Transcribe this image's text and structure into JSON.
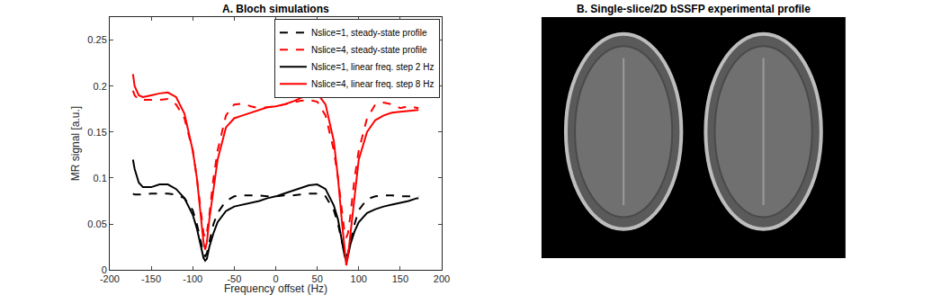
{
  "chart_data": [
    {
      "type": "line",
      "title": "A. Bloch simulations",
      "x_label": "Frequency offset (Hz)",
      "y_label": "MR signal [a.u.]",
      "x": [
        -172,
        -170,
        -165,
        -160,
        -150,
        -140,
        -130,
        -120,
        -110,
        -100,
        -95,
        -90,
        -87,
        -85,
        -83,
        -80,
        -75,
        -70,
        -60,
        -50,
        -40,
        -30,
        -20,
        -10,
        0,
        10,
        20,
        30,
        40,
        50,
        60,
        70,
        75,
        80,
        83,
        85,
        87,
        90,
        95,
        100,
        110,
        120,
        130,
        140,
        150,
        160,
        170,
        172
      ],
      "series": [
        {
          "name": "Nslice=1, steady-state profile",
          "color": "#000000",
          "line_style": "dash",
          "values": [
            0.083,
            0.082,
            0.082,
            0.082,
            0.083,
            0.083,
            0.083,
            0.082,
            0.078,
            0.065,
            0.05,
            0.03,
            0.018,
            0.015,
            0.018,
            0.03,
            0.05,
            0.062,
            0.075,
            0.08,
            0.081,
            0.081,
            0.081,
            0.08,
            0.08,
            0.081,
            0.081,
            0.082,
            0.083,
            0.083,
            0.08,
            0.065,
            0.05,
            0.03,
            0.018,
            0.015,
            0.018,
            0.03,
            0.05,
            0.065,
            0.077,
            0.08,
            0.081,
            0.081,
            0.08,
            0.08,
            0.08,
            0.08
          ]
        },
        {
          "name": "Nslice=4, steady-state profile",
          "color": "#ff0000",
          "line_style": "dash",
          "values": [
            0.195,
            0.19,
            0.185,
            0.185,
            0.185,
            0.185,
            0.186,
            0.18,
            0.165,
            0.13,
            0.1,
            0.06,
            0.04,
            0.035,
            0.04,
            0.06,
            0.1,
            0.13,
            0.168,
            0.18,
            0.181,
            0.178,
            0.176,
            0.177,
            0.178,
            0.18,
            0.182,
            0.184,
            0.185,
            0.183,
            0.168,
            0.13,
            0.1,
            0.06,
            0.04,
            0.035,
            0.04,
            0.06,
            0.1,
            0.13,
            0.165,
            0.18,
            0.182,
            0.18,
            0.176,
            0.178,
            0.176,
            0.176
          ]
        },
        {
          "name": "Nslice=1, linear freq. step 2 Hz",
          "color": "#000000",
          "line_style": "solid",
          "values": [
            0.12,
            0.11,
            0.095,
            0.09,
            0.09,
            0.093,
            0.093,
            0.088,
            0.078,
            0.06,
            0.045,
            0.025,
            0.013,
            0.01,
            0.012,
            0.025,
            0.04,
            0.052,
            0.064,
            0.069,
            0.071,
            0.073,
            0.075,
            0.078,
            0.08,
            0.083,
            0.086,
            0.089,
            0.092,
            0.093,
            0.088,
            0.07,
            0.055,
            0.03,
            0.015,
            0.01,
            0.015,
            0.028,
            0.042,
            0.052,
            0.062,
            0.066,
            0.069,
            0.071,
            0.073,
            0.075,
            0.078,
            0.078
          ]
        },
        {
          "name": "Nslice=4, linear freq. step 8 Hz",
          "color": "#ff0000",
          "line_style": "solid",
          "values": [
            0.213,
            0.2,
            0.19,
            0.188,
            0.19,
            0.192,
            0.193,
            0.188,
            0.17,
            0.13,
            0.1,
            0.055,
            0.03,
            0.022,
            0.03,
            0.055,
            0.09,
            0.12,
            0.155,
            0.165,
            0.168,
            0.171,
            0.174,
            0.177,
            0.178,
            0.18,
            0.183,
            0.187,
            0.191,
            0.192,
            0.18,
            0.14,
            0.1,
            0.05,
            0.02,
            0.005,
            0.015,
            0.04,
            0.08,
            0.12,
            0.15,
            0.163,
            0.168,
            0.171,
            0.172,
            0.173,
            0.174,
            0.174
          ]
        }
      ],
      "xlim": [
        -200,
        200
      ],
      "xticks": [
        -200,
        -150,
        -100,
        -50,
        0,
        50,
        100,
        150,
        200
      ],
      "ylim": [
        0,
        0.275
      ],
      "yticks": [
        0,
        0.05,
        0.1,
        0.15,
        0.2,
        0.25
      ],
      "grid": false,
      "legend": "top right"
    },
    {
      "type": "image",
      "title": "B. Single-slice/2D bSSFP experimental profile"
    }
  ]
}
